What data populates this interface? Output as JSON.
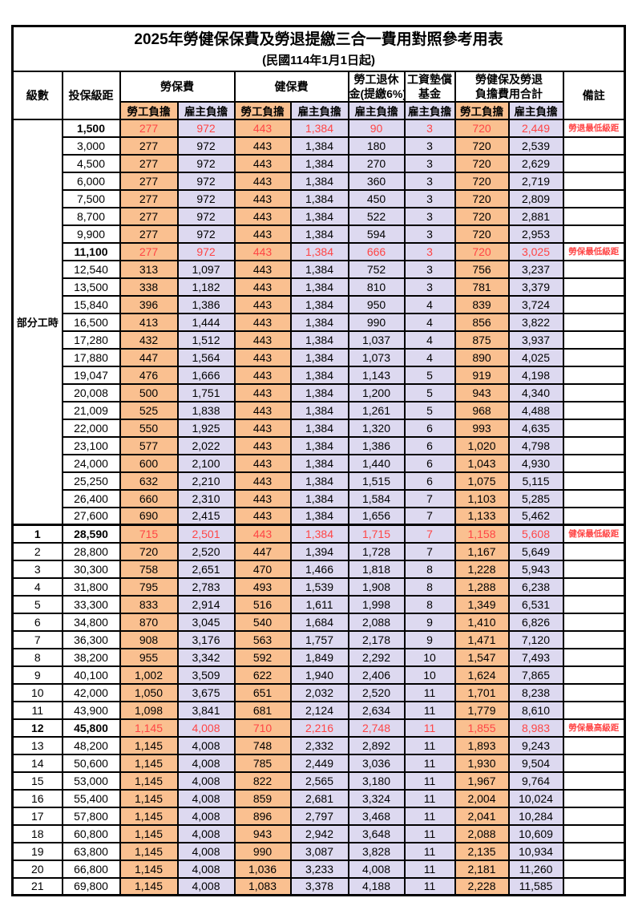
{
  "title": "2025年勞健保保費及勞退提繳三合一費用對照參考用表",
  "subtitle": "(民國114年1月1日起)",
  "colors": {
    "employee_column_bg": "#FAC090",
    "employer_column_bg": "#DDD9F0",
    "highlight_text": "#FF4545",
    "border": "#000000"
  },
  "header": {
    "level": "級數",
    "bracket": "投保級距",
    "labor_insurance": "勞保費",
    "health_insurance": "健保費",
    "pension_line1": "勞工退休",
    "pension_line2": "金(提繳6%)",
    "wage_fund_line1": "工資墊償",
    "wage_fund_line2": "基金",
    "total_line1": "勞健保及勞退",
    "total_line2": "負擔費用合計",
    "remarks": "備註",
    "employee_share": "勞工負擔",
    "employer_share": "雇主負擔"
  },
  "table": {
    "part_time_label": "部分工時",
    "columns": [
      "級數",
      "投保級距",
      "勞保費-勞工負擔",
      "勞保費-雇主負擔",
      "健保費-勞工負擔",
      "健保費-雇主負擔",
      "勞工退休金(提繳6%)-雇主負擔",
      "工資墊償基金-雇主負擔",
      "合計-勞工負擔",
      "合計-雇主負擔",
      "備註"
    ],
    "rows": [
      {
        "level": "",
        "bracket": "1,500",
        "values": [
          "277",
          "972",
          "443",
          "1,384",
          "90",
          "3",
          "720",
          "2,449"
        ],
        "note": "勞退最低級距",
        "highlight": true
      },
      {
        "level": "",
        "bracket": "3,000",
        "values": [
          "277",
          "972",
          "443",
          "1,384",
          "180",
          "3",
          "720",
          "2,539"
        ],
        "note": "",
        "highlight": false
      },
      {
        "level": "",
        "bracket": "4,500",
        "values": [
          "277",
          "972",
          "443",
          "1,384",
          "270",
          "3",
          "720",
          "2,629"
        ],
        "note": "",
        "highlight": false
      },
      {
        "level": "",
        "bracket": "6,000",
        "values": [
          "277",
          "972",
          "443",
          "1,384",
          "360",
          "3",
          "720",
          "2,719"
        ],
        "note": "",
        "highlight": false
      },
      {
        "level": "",
        "bracket": "7,500",
        "values": [
          "277",
          "972",
          "443",
          "1,384",
          "450",
          "3",
          "720",
          "2,809"
        ],
        "note": "",
        "highlight": false
      },
      {
        "level": "",
        "bracket": "8,700",
        "values": [
          "277",
          "972",
          "443",
          "1,384",
          "522",
          "3",
          "720",
          "2,881"
        ],
        "note": "",
        "highlight": false
      },
      {
        "level": "",
        "bracket": "9,900",
        "values": [
          "277",
          "972",
          "443",
          "1,384",
          "594",
          "3",
          "720",
          "2,953"
        ],
        "note": "",
        "highlight": false
      },
      {
        "level": "",
        "bracket": "11,100",
        "values": [
          "277",
          "972",
          "443",
          "1,384",
          "666",
          "3",
          "720",
          "3,025"
        ],
        "note": "勞保最低級距",
        "highlight": true
      },
      {
        "level": "",
        "bracket": "12,540",
        "values": [
          "313",
          "1,097",
          "443",
          "1,384",
          "752",
          "3",
          "756",
          "3,237"
        ],
        "note": "",
        "highlight": false
      },
      {
        "level": "",
        "bracket": "13,500",
        "values": [
          "338",
          "1,182",
          "443",
          "1,384",
          "810",
          "3",
          "781",
          "3,379"
        ],
        "note": "",
        "highlight": false
      },
      {
        "level": "",
        "bracket": "15,840",
        "values": [
          "396",
          "1,386",
          "443",
          "1,384",
          "950",
          "4",
          "839",
          "3,724"
        ],
        "note": "",
        "highlight": false
      },
      {
        "level": "",
        "bracket": "16,500",
        "values": [
          "413",
          "1,444",
          "443",
          "1,384",
          "990",
          "4",
          "856",
          "3,822"
        ],
        "note": "",
        "highlight": false
      },
      {
        "level": "",
        "bracket": "17,280",
        "values": [
          "432",
          "1,512",
          "443",
          "1,384",
          "1,037",
          "4",
          "875",
          "3,937"
        ],
        "note": "",
        "highlight": false
      },
      {
        "level": "",
        "bracket": "17,880",
        "values": [
          "447",
          "1,564",
          "443",
          "1,384",
          "1,073",
          "4",
          "890",
          "4,025"
        ],
        "note": "",
        "highlight": false
      },
      {
        "level": "",
        "bracket": "19,047",
        "values": [
          "476",
          "1,666",
          "443",
          "1,384",
          "1,143",
          "5",
          "919",
          "4,198"
        ],
        "note": "",
        "highlight": false
      },
      {
        "level": "",
        "bracket": "20,008",
        "values": [
          "500",
          "1,751",
          "443",
          "1,384",
          "1,200",
          "5",
          "943",
          "4,340"
        ],
        "note": "",
        "highlight": false
      },
      {
        "level": "",
        "bracket": "21,009",
        "values": [
          "525",
          "1,838",
          "443",
          "1,384",
          "1,261",
          "5",
          "968",
          "4,488"
        ],
        "note": "",
        "highlight": false
      },
      {
        "level": "",
        "bracket": "22,000",
        "values": [
          "550",
          "1,925",
          "443",
          "1,384",
          "1,320",
          "6",
          "993",
          "4,635"
        ],
        "note": "",
        "highlight": false
      },
      {
        "level": "",
        "bracket": "23,100",
        "values": [
          "577",
          "2,022",
          "443",
          "1,384",
          "1,386",
          "6",
          "1,020",
          "4,798"
        ],
        "note": "",
        "highlight": false
      },
      {
        "level": "",
        "bracket": "24,000",
        "values": [
          "600",
          "2,100",
          "443",
          "1,384",
          "1,440",
          "6",
          "1,043",
          "4,930"
        ],
        "note": "",
        "highlight": false
      },
      {
        "level": "",
        "bracket": "25,250",
        "values": [
          "632",
          "2,210",
          "443",
          "1,384",
          "1,515",
          "6",
          "1,075",
          "5,115"
        ],
        "note": "",
        "highlight": false
      },
      {
        "level": "",
        "bracket": "26,400",
        "values": [
          "660",
          "2,310",
          "443",
          "1,384",
          "1,584",
          "7",
          "1,103",
          "5,285"
        ],
        "note": "",
        "highlight": false
      },
      {
        "level": "",
        "bracket": "27,600",
        "values": [
          "690",
          "2,415",
          "443",
          "1,384",
          "1,656",
          "7",
          "1,133",
          "5,462"
        ],
        "note": "",
        "highlight": false
      },
      {
        "level": "1",
        "bracket": "28,590",
        "values": [
          "715",
          "2,501",
          "443",
          "1,384",
          "1,715",
          "7",
          "1,158",
          "5,608"
        ],
        "note": "健保最低級距",
        "highlight": true
      },
      {
        "level": "2",
        "bracket": "28,800",
        "values": [
          "720",
          "2,520",
          "447",
          "1,394",
          "1,728",
          "7",
          "1,167",
          "5,649"
        ],
        "note": "",
        "highlight": false
      },
      {
        "level": "3",
        "bracket": "30,300",
        "values": [
          "758",
          "2,651",
          "470",
          "1,466",
          "1,818",
          "8",
          "1,228",
          "5,943"
        ],
        "note": "",
        "highlight": false
      },
      {
        "level": "4",
        "bracket": "31,800",
        "values": [
          "795",
          "2,783",
          "493",
          "1,539",
          "1,908",
          "8",
          "1,288",
          "6,238"
        ],
        "note": "",
        "highlight": false
      },
      {
        "level": "5",
        "bracket": "33,300",
        "values": [
          "833",
          "2,914",
          "516",
          "1,611",
          "1,998",
          "8",
          "1,349",
          "6,531"
        ],
        "note": "",
        "highlight": false
      },
      {
        "level": "6",
        "bracket": "34,800",
        "values": [
          "870",
          "3,045",
          "540",
          "1,684",
          "2,088",
          "9",
          "1,410",
          "6,826"
        ],
        "note": "",
        "highlight": false
      },
      {
        "level": "7",
        "bracket": "36,300",
        "values": [
          "908",
          "3,176",
          "563",
          "1,757",
          "2,178",
          "9",
          "1,471",
          "7,120"
        ],
        "note": "",
        "highlight": false
      },
      {
        "level": "8",
        "bracket": "38,200",
        "values": [
          "955",
          "3,342",
          "592",
          "1,849",
          "2,292",
          "10",
          "1,547",
          "7,493"
        ],
        "note": "",
        "highlight": false
      },
      {
        "level": "9",
        "bracket": "40,100",
        "values": [
          "1,002",
          "3,509",
          "622",
          "1,940",
          "2,406",
          "10",
          "1,624",
          "7,865"
        ],
        "note": "",
        "highlight": false
      },
      {
        "level": "10",
        "bracket": "42,000",
        "values": [
          "1,050",
          "3,675",
          "651",
          "2,032",
          "2,520",
          "11",
          "1,701",
          "8,238"
        ],
        "note": "",
        "highlight": false
      },
      {
        "level": "11",
        "bracket": "43,900",
        "values": [
          "1,098",
          "3,841",
          "681",
          "2,124",
          "2,634",
          "11",
          "1,779",
          "8,610"
        ],
        "note": "",
        "highlight": false
      },
      {
        "level": "12",
        "bracket": "45,800",
        "values": [
          "1,145",
          "4,008",
          "710",
          "2,216",
          "2,748",
          "11",
          "1,855",
          "8,983"
        ],
        "note": "勞保最高級距",
        "highlight": true
      },
      {
        "level": "13",
        "bracket": "48,200",
        "values": [
          "1,145",
          "4,008",
          "748",
          "2,332",
          "2,892",
          "11",
          "1,893",
          "9,243"
        ],
        "note": "",
        "highlight": false
      },
      {
        "level": "14",
        "bracket": "50,600",
        "values": [
          "1,145",
          "4,008",
          "785",
          "2,449",
          "3,036",
          "11",
          "1,930",
          "9,504"
        ],
        "note": "",
        "highlight": false
      },
      {
        "level": "15",
        "bracket": "53,000",
        "values": [
          "1,145",
          "4,008",
          "822",
          "2,565",
          "3,180",
          "11",
          "1,967",
          "9,764"
        ],
        "note": "",
        "highlight": false
      },
      {
        "level": "16",
        "bracket": "55,400",
        "values": [
          "1,145",
          "4,008",
          "859",
          "2,681",
          "3,324",
          "11",
          "2,004",
          "10,024"
        ],
        "note": "",
        "highlight": false
      },
      {
        "level": "17",
        "bracket": "57,800",
        "values": [
          "1,145",
          "4,008",
          "896",
          "2,797",
          "3,468",
          "11",
          "2,041",
          "10,284"
        ],
        "note": "",
        "highlight": false
      },
      {
        "level": "18",
        "bracket": "60,800",
        "values": [
          "1,145",
          "4,008",
          "943",
          "2,942",
          "3,648",
          "11",
          "2,088",
          "10,609"
        ],
        "note": "",
        "highlight": false
      },
      {
        "level": "19",
        "bracket": "63,800",
        "values": [
          "1,145",
          "4,008",
          "990",
          "3,087",
          "3,828",
          "11",
          "2,135",
          "10,934"
        ],
        "note": "",
        "highlight": false
      },
      {
        "level": "20",
        "bracket": "66,800",
        "values": [
          "1,145",
          "4,008",
          "1,036",
          "3,233",
          "4,008",
          "11",
          "2,181",
          "11,260"
        ],
        "note": "",
        "highlight": false
      },
      {
        "level": "21",
        "bracket": "69,800",
        "values": [
          "1,145",
          "4,008",
          "1,083",
          "3,378",
          "4,188",
          "11",
          "2,228",
          "11,585"
        ],
        "note": "",
        "highlight": false
      }
    ]
  }
}
